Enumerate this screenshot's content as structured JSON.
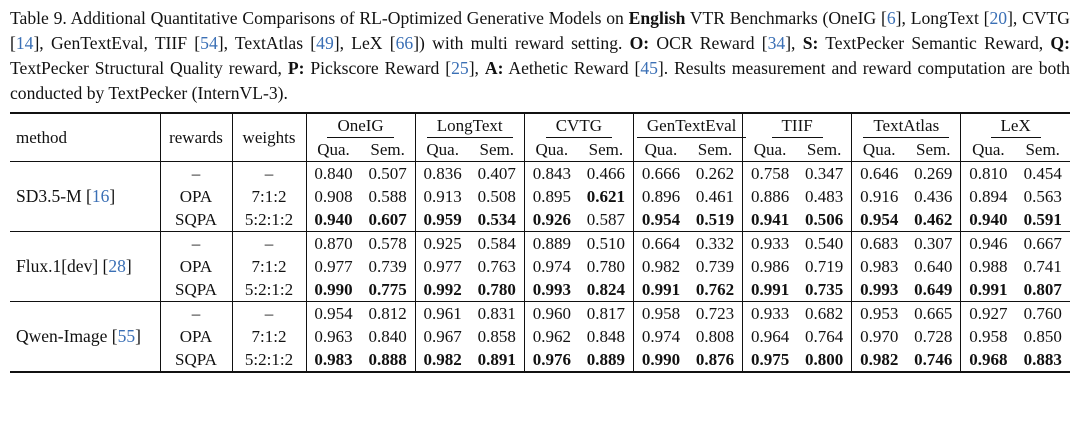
{
  "caption": {
    "prefix": "Table 9. Additional Quantitative Comparisons of RL-Optimized Generative Models on ",
    "bold_word": "English",
    "p1": " VTR Benchmarks (OneIG [",
    "r1": "6",
    "p2": "], LongText [",
    "r2": "20",
    "p3": "], CVTG [",
    "r3": "14",
    "p4": "], GenTextEval, TIIF [",
    "r4": "54",
    "p5": "], TextAtlas [",
    "r5": "49",
    "p6": "], LeX [",
    "r6": "66",
    "p7": "]) with multi reward setting. ",
    "o_key": "O:",
    "o_text": " OCR Reward [",
    "r7": "34",
    "p8": "], ",
    "s_key": "S:",
    "s_text": " TextPecker Semantic Reward, ",
    "q_key": "Q:",
    "q_text": " TextPecker Structural Quality reward, ",
    "p_key": "P:",
    "p_text": " Pickscore Reward [",
    "r8": "25",
    "p9": "], ",
    "a_key": "A:",
    "a_text": " Aethetic Reward [",
    "r9": "45",
    "p10": "]. Results measurement and reward computation are both conducted by TextPecker (InternVL-3)."
  },
  "table": {
    "headers": {
      "method": "method",
      "rewards": "rewards",
      "weights": "weights",
      "benchmarks": [
        "OneIG",
        "LongText",
        "CVTG",
        "GenTextEval",
        "TIIF",
        "TextAtlas",
        "LeX"
      ],
      "sub_qua": "Qua.",
      "sub_sem": "Sem."
    },
    "groups": [
      {
        "method": "SD3.5-M [",
        "method_ref": "16",
        "method_suffix": "]",
        "rows": [
          {
            "rewards": "–",
            "weights": "–",
            "values": [
              "0.840",
              "0.507",
              "0.836",
              "0.407",
              "0.843",
              "0.466",
              "0.666",
              "0.262",
              "0.758",
              "0.347",
              "0.646",
              "0.269",
              "0.810",
              "0.454"
            ],
            "bold": [
              false,
              false,
              false,
              false,
              false,
              false,
              false,
              false,
              false,
              false,
              false,
              false,
              false,
              false
            ]
          },
          {
            "rewards": "OPA",
            "weights": "7:1:2",
            "values": [
              "0.908",
              "0.588",
              "0.913",
              "0.508",
              "0.895",
              "0.621",
              "0.896",
              "0.461",
              "0.886",
              "0.483",
              "0.916",
              "0.436",
              "0.894",
              "0.563"
            ],
            "bold": [
              false,
              false,
              false,
              false,
              false,
              true,
              false,
              false,
              false,
              false,
              false,
              false,
              false,
              false
            ]
          },
          {
            "rewards": "SQPA",
            "weights": "5:2:1:2",
            "values": [
              "0.940",
              "0.607",
              "0.959",
              "0.534",
              "0.926",
              "0.587",
              "0.954",
              "0.519",
              "0.941",
              "0.506",
              "0.954",
              "0.462",
              "0.940",
              "0.591"
            ],
            "bold": [
              true,
              true,
              true,
              true,
              true,
              false,
              true,
              true,
              true,
              true,
              true,
              true,
              true,
              true
            ]
          }
        ]
      },
      {
        "method": "Flux.1[dev] [",
        "method_ref": "28",
        "method_suffix": "]",
        "rows": [
          {
            "rewards": "–",
            "weights": "–",
            "values": [
              "0.870",
              "0.578",
              "0.925",
              "0.584",
              "0.889",
              "0.510",
              "0.664",
              "0.332",
              "0.933",
              "0.540",
              "0.683",
              "0.307",
              "0.946",
              "0.667"
            ],
            "bold": [
              false,
              false,
              false,
              false,
              false,
              false,
              false,
              false,
              false,
              false,
              false,
              false,
              false,
              false
            ]
          },
          {
            "rewards": "OPA",
            "weights": "7:1:2",
            "values": [
              "0.977",
              "0.739",
              "0.977",
              "0.763",
              "0.974",
              "0.780",
              "0.982",
              "0.739",
              "0.986",
              "0.719",
              "0.983",
              "0.640",
              "0.988",
              "0.741"
            ],
            "bold": [
              false,
              false,
              false,
              false,
              false,
              false,
              false,
              false,
              false,
              false,
              false,
              false,
              false,
              false
            ]
          },
          {
            "rewards": "SQPA",
            "weights": "5:2:1:2",
            "values": [
              "0.990",
              "0.775",
              "0.992",
              "0.780",
              "0.993",
              "0.824",
              "0.991",
              "0.762",
              "0.991",
              "0.735",
              "0.993",
              "0.649",
              "0.991",
              "0.807"
            ],
            "bold": [
              true,
              true,
              true,
              true,
              true,
              true,
              true,
              true,
              true,
              true,
              true,
              true,
              true,
              true
            ]
          }
        ]
      },
      {
        "method": "Qwen-Image [",
        "method_ref": "55",
        "method_suffix": "]",
        "rows": [
          {
            "rewards": "–",
            "weights": "–",
            "values": [
              "0.954",
              "0.812",
              "0.961",
              "0.831",
              "0.960",
              "0.817",
              "0.958",
              "0.723",
              "0.933",
              "0.682",
              "0.953",
              "0.665",
              "0.927",
              "0.760"
            ],
            "bold": [
              false,
              false,
              false,
              false,
              false,
              false,
              false,
              false,
              false,
              false,
              false,
              false,
              false,
              false
            ]
          },
          {
            "rewards": "OPA",
            "weights": "7:1:2",
            "values": [
              "0.963",
              "0.840",
              "0.967",
              "0.858",
              "0.962",
              "0.848",
              "0.974",
              "0.808",
              "0.964",
              "0.764",
              "0.970",
              "0.728",
              "0.958",
              "0.850"
            ],
            "bold": [
              false,
              false,
              false,
              false,
              false,
              false,
              false,
              false,
              false,
              false,
              false,
              false,
              false,
              false
            ]
          },
          {
            "rewards": "SQPA",
            "weights": "5:2:1:2",
            "values": [
              "0.983",
              "0.888",
              "0.982",
              "0.891",
              "0.976",
              "0.889",
              "0.990",
              "0.876",
              "0.975",
              "0.800",
              "0.982",
              "0.746",
              "0.968",
              "0.883"
            ],
            "bold": [
              true,
              true,
              true,
              true,
              true,
              true,
              true,
              true,
              true,
              true,
              true,
              true,
              true,
              true
            ]
          }
        ]
      }
    ]
  }
}
